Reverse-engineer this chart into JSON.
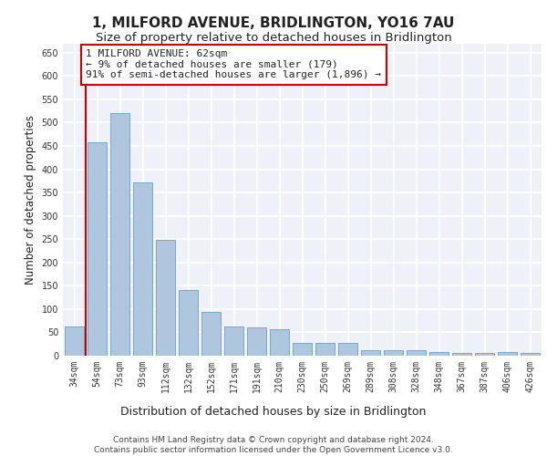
{
  "title": "1, MILFORD AVENUE, BRIDLINGTON, YO16 7AU",
  "subtitle": "Size of property relative to detached houses in Bridlington",
  "xlabel": "Distribution of detached houses by size in Bridlington",
  "ylabel": "Number of detached properties",
  "categories": [
    "34sqm",
    "54sqm",
    "73sqm",
    "93sqm",
    "112sqm",
    "132sqm",
    "152sqm",
    "171sqm",
    "191sqm",
    "210sqm",
    "230sqm",
    "250sqm",
    "269sqm",
    "289sqm",
    "308sqm",
    "328sqm",
    "348sqm",
    "367sqm",
    "387sqm",
    "406sqm",
    "426sqm"
  ],
  "values": [
    62,
    457,
    520,
    372,
    249,
    140,
    93,
    63,
    60,
    57,
    27,
    27,
    27,
    11,
    11,
    11,
    8,
    6,
    6,
    8,
    5
  ],
  "bar_color": "#aec6de",
  "bar_edge_color": "#6a9fbf",
  "vline_color": "#cc0000",
  "annotation_text": "1 MILFORD AVENUE: 62sqm\n← 9% of detached houses are smaller (179)\n91% of semi-detached houses are larger (1,896) →",
  "annotation_box_color": "#ffffff",
  "annotation_box_edge": "#cc0000",
  "ylim": [
    0,
    670
  ],
  "yticks": [
    0,
    50,
    100,
    150,
    200,
    250,
    300,
    350,
    400,
    450,
    500,
    550,
    600,
    650
  ],
  "background_color": "#eef2f8",
  "grid_color": "#ffffff",
  "footer_text": "Contains HM Land Registry data © Crown copyright and database right 2024.\nContains public sector information licensed under the Open Government Licence v3.0.",
  "title_fontsize": 11,
  "subtitle_fontsize": 9.5,
  "xlabel_fontsize": 9,
  "ylabel_fontsize": 8.5,
  "tick_fontsize": 7,
  "annotation_fontsize": 8,
  "footer_fontsize": 6.5
}
